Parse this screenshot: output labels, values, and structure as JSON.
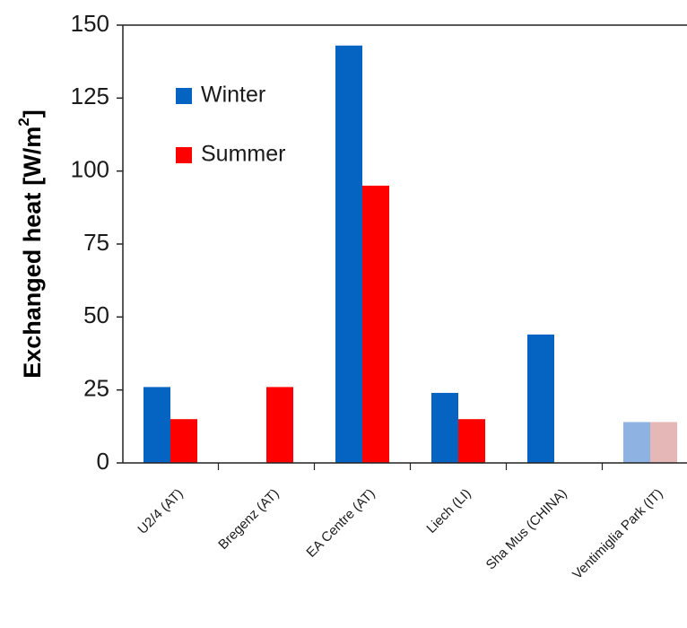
{
  "chart_data": {
    "type": "bar",
    "ylabel": "Exchanged heat",
    "ylabel_unit": "[W/m",
    "ylabel_unit_sup": "2",
    "ylabel_unit_close": "]",
    "ylim": [
      0,
      150
    ],
    "yticks": [
      "0",
      "25",
      "50",
      "75",
      "100",
      "125",
      "150"
    ],
    "categories": [
      "U2/4 (AT)",
      "Bregenz (AT)",
      "EA Centre (AT)",
      "Liech (LI)",
      "Sha Mus (CHINA)",
      "Ventimiglia Park (IT)"
    ],
    "series": [
      {
        "name": "Winter",
        "color": "#0563c1",
        "values": [
          26,
          null,
          143,
          24,
          44,
          14
        ],
        "faded_color": "#8eb3e3",
        "faded": [
          false,
          false,
          false,
          false,
          false,
          true
        ]
      },
      {
        "name": "Summer",
        "color": "#ff0000",
        "values": [
          15,
          26,
          95,
          15,
          null,
          14
        ],
        "faded_color": "#e6b7b7",
        "faded": [
          false,
          false,
          false,
          false,
          false,
          true
        ]
      }
    ],
    "legend_position": "top-left",
    "grid": false
  }
}
